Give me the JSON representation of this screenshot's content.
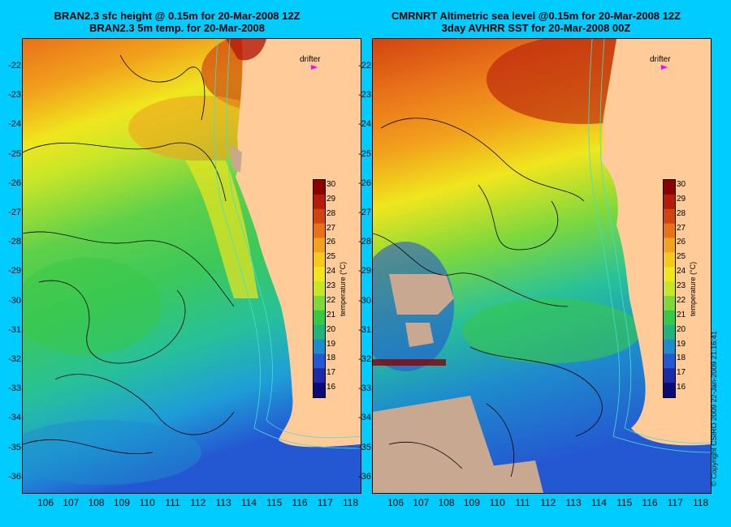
{
  "left_map": {
    "title_line1": "BRAN2.3 sfc height @ 0.15m for 20-Mar-2008 12Z",
    "title_line2": "BRAN2.3 5m temp. for 20-Mar-2008"
  },
  "right_map": {
    "title_line1": "CMRNRT Altimetric sea level  @0.15m  for 20-Mar-2008 12Z",
    "title_line2": "3day AVHRR SST for 20-Mar-2008 00Z"
  },
  "latitudes": [
    "-22",
    "-23",
    "-24",
    "-25",
    "-26",
    "-27",
    "-28",
    "-29",
    "-30",
    "-31",
    "-32",
    "-33",
    "-34",
    "-35",
    "-36"
  ],
  "longitudes": [
    "106",
    "107",
    "108",
    "109",
    "110",
    "111",
    "112",
    "113",
    "114",
    "115",
    "116",
    "117",
    "118"
  ],
  "drifter_label": "drifter",
  "colorbar": {
    "title": "temperature (°C)",
    "ticks": [
      "30",
      "29",
      "28",
      "27",
      "26",
      "25",
      "24",
      "23",
      "22",
      "21",
      "20",
      "19",
      "18",
      "17",
      "16"
    ],
    "colors": [
      "#8b0000",
      "#b51a0a",
      "#d2440f",
      "#e8711a",
      "#f2a21c",
      "#f9c81e",
      "#f0e61e",
      "#c8e628",
      "#7ed83c",
      "#38c848",
      "#1fb47a",
      "#1e8ccc",
      "#2457d2",
      "#1c2aa6",
      "#0a0a78"
    ]
  },
  "copyright": "© Copyright CSIRO 2009   22-Jan-2009 21:16:41",
  "colors": {
    "background": "#00ccff",
    "land": "#ffcc99",
    "no_data": "#c8a890",
    "contour": "#000000",
    "bathymetry": "#40e0d0",
    "drifter_marker": "#ff00ff"
  }
}
